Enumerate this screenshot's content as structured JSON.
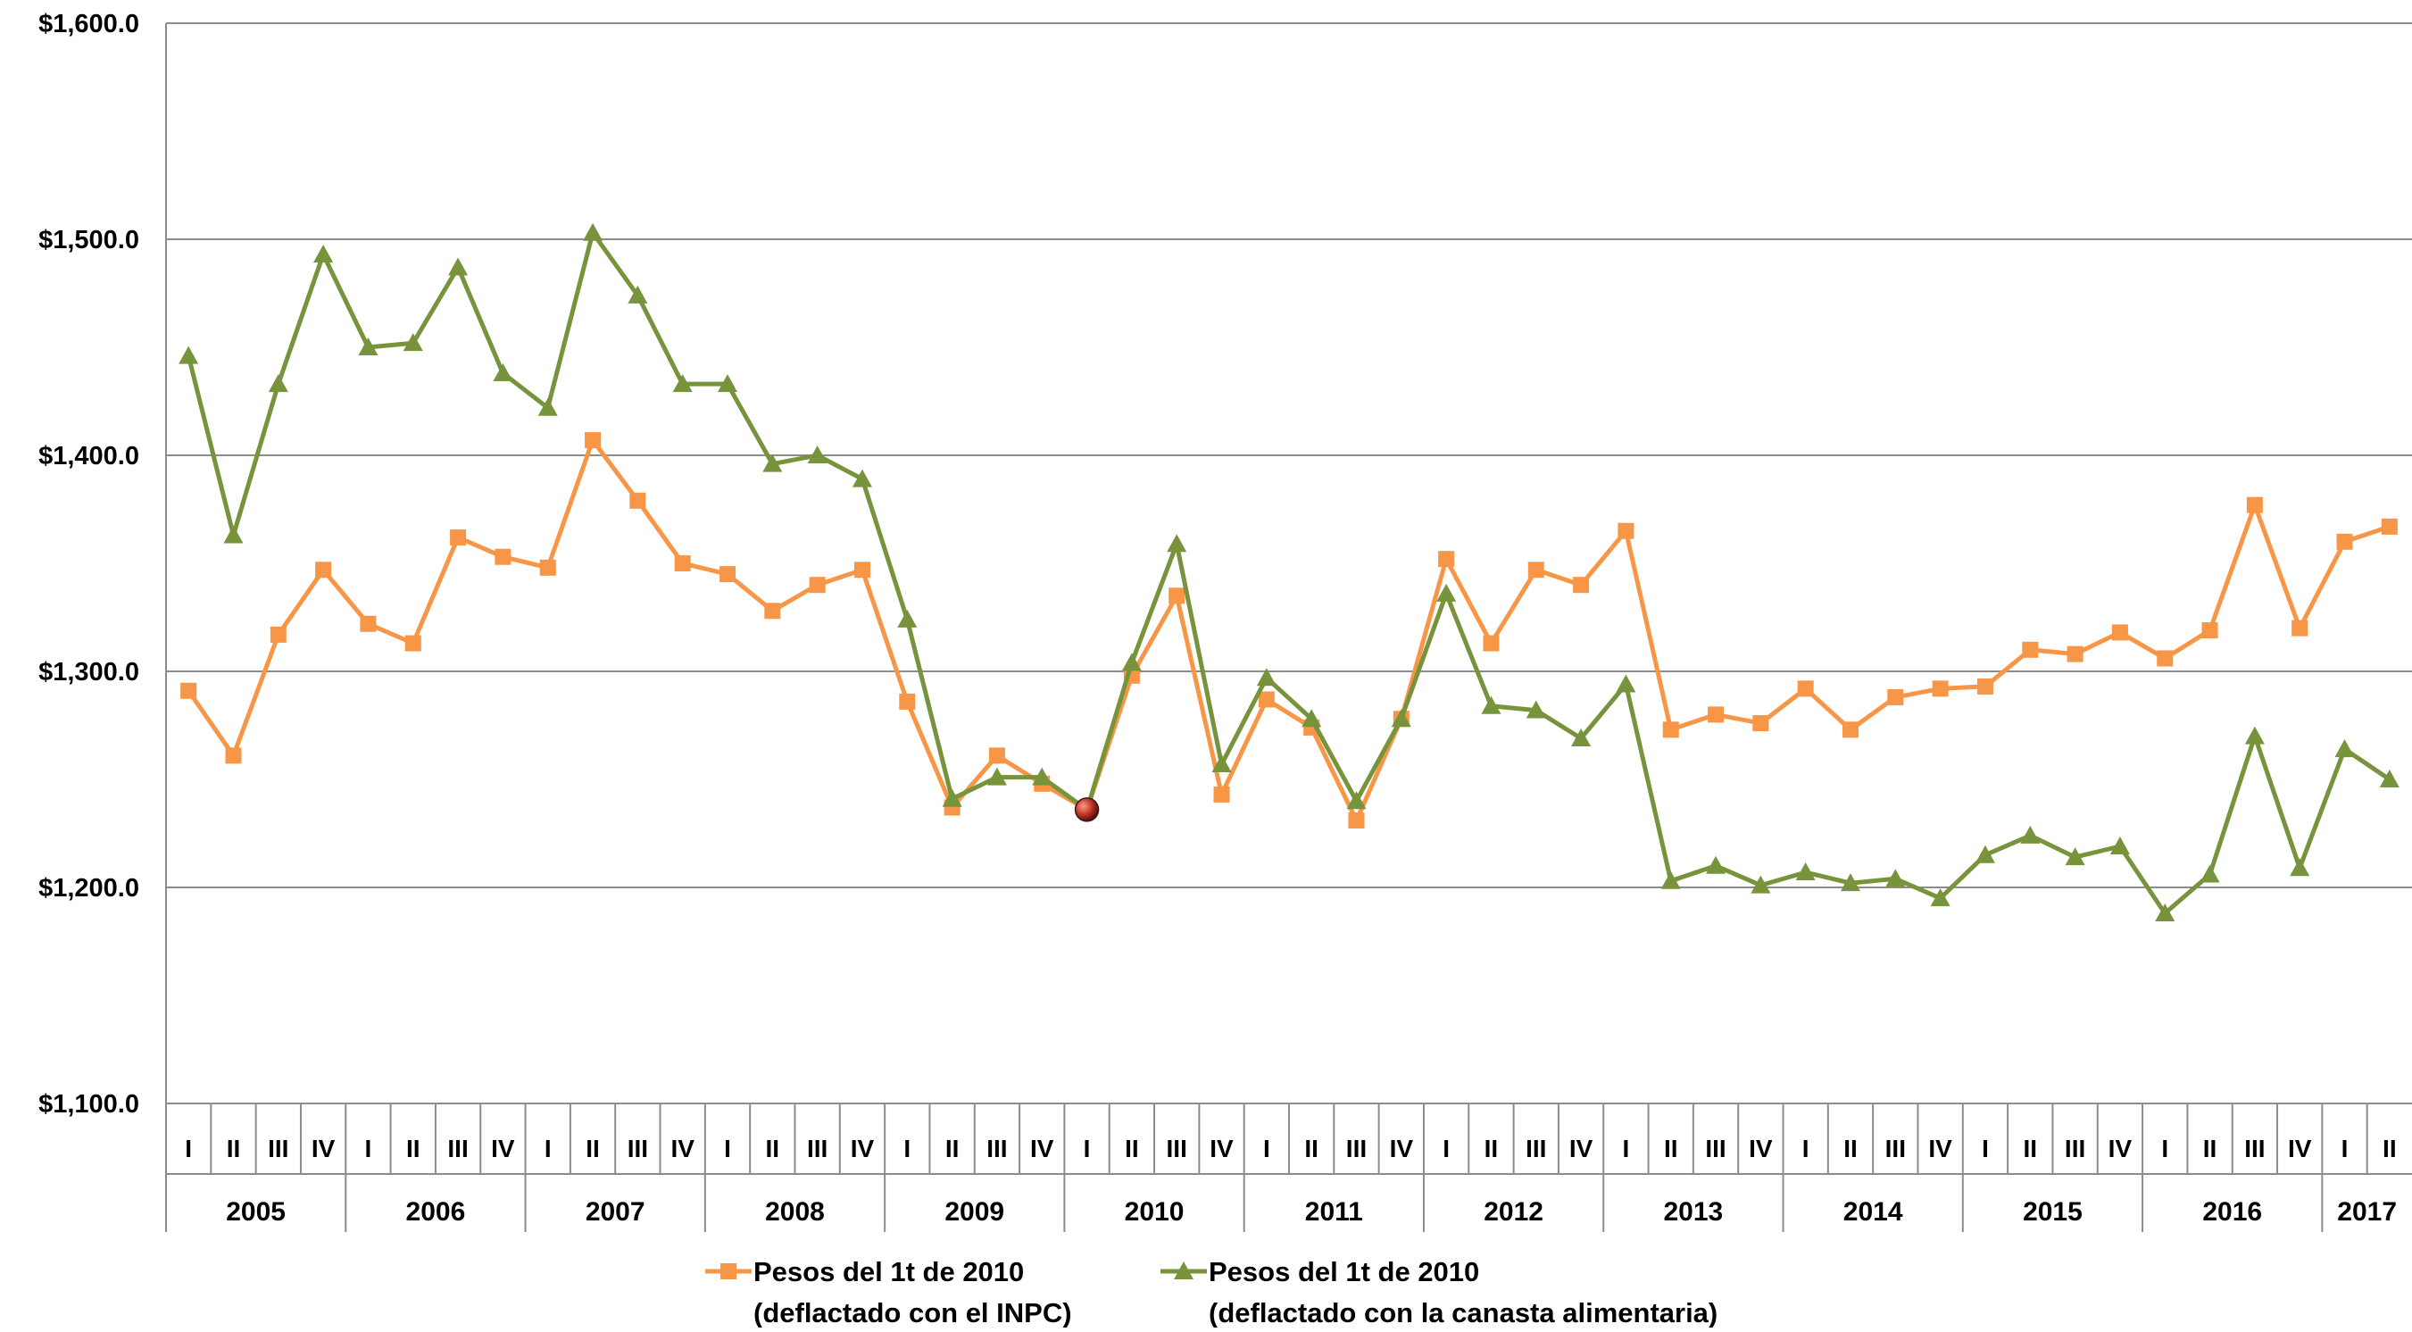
{
  "chart_data": {
    "type": "line",
    "ylim": [
      1100,
      1600
    ],
    "yticks": [
      "$1,100.0",
      "$1,200.0",
      "$1,300.0",
      "$1,400.0",
      "$1,500.0",
      "$1,600.0"
    ],
    "ytick_values": [
      1100,
      1200,
      1300,
      1400,
      1500,
      1600
    ],
    "grid": "horizontal",
    "legend_position": "bottom",
    "quarter_labels": [
      "I",
      "II",
      "III",
      "IV",
      "I",
      "II",
      "III",
      "IV",
      "I",
      "II",
      "III",
      "IV",
      "I",
      "II",
      "III",
      "IV",
      "I",
      "II",
      "III",
      "IV",
      "I",
      "II",
      "III",
      "IV",
      "I",
      "II",
      "III",
      "IV",
      "I",
      "II",
      "III",
      "IV",
      "I",
      "II",
      "III",
      "IV",
      "I",
      "II",
      "III",
      "IV",
      "I",
      "II",
      "III",
      "IV",
      "I",
      "II",
      "III",
      "IV",
      "I",
      "II"
    ],
    "years": [
      {
        "label": "2005",
        "quarters": 4
      },
      {
        "label": "2006",
        "quarters": 4
      },
      {
        "label": "2007",
        "quarters": 4
      },
      {
        "label": "2008",
        "quarters": 4
      },
      {
        "label": "2009",
        "quarters": 4
      },
      {
        "label": "2010",
        "quarters": 4
      },
      {
        "label": "2011",
        "quarters": 4
      },
      {
        "label": "2012",
        "quarters": 4
      },
      {
        "label": "2013",
        "quarters": 4
      },
      {
        "label": "2014",
        "quarters": 4
      },
      {
        "label": "2015",
        "quarters": 4
      },
      {
        "label": "2016",
        "quarters": 4
      },
      {
        "label": "2017",
        "quarters": 2
      }
    ],
    "series": [
      {
        "name_line1": "Pesos del 1t de 2010",
        "name_line2": "(deflactado con el INPC)",
        "color": "#F79646",
        "marker": "square",
        "values": [
          1291,
          1261,
          1317,
          1347,
          1322,
          1313,
          1362,
          1353,
          1348,
          1407,
          1379,
          1350,
          1345,
          1328,
          1340,
          1347,
          1286,
          1237,
          1261,
          1248,
          1236,
          1298,
          1335,
          1243,
          1287,
          1274,
          1231,
          1278,
          1352,
          1313,
          1347,
          1340,
          1365,
          1273,
          1280,
          1276,
          1292,
          1273,
          1288,
          1292,
          1293,
          1310,
          1308,
          1318,
          1306,
          1319,
          1377,
          1320,
          1360,
          1367
        ]
      },
      {
        "name_line1": "Pesos del 1t de 2010",
        "name_line2": "(deflactado con la canasta alimentaria)",
        "color": "#77933C",
        "marker": "triangle",
        "values": [
          1446,
          1363,
          1433,
          1493,
          1450,
          1452,
          1487,
          1438,
          1422,
          1503,
          1474,
          1433,
          1433,
          1396,
          1400,
          1389,
          1324,
          1241,
          1251,
          1251,
          1236,
          1304,
          1359,
          1257,
          1297,
          1278,
          1240,
          1278,
          1336,
          1284,
          1282,
          1269,
          1294,
          1203,
          1210,
          1201,
          1207,
          1202,
          1204,
          1195,
          1215,
          1224,
          1214,
          1219,
          1188,
          1206,
          1270,
          1209,
          1264,
          1250
        ]
      }
    ],
    "highlight": {
      "index": 20,
      "value": 1236,
      "color": "#C0392B"
    }
  }
}
